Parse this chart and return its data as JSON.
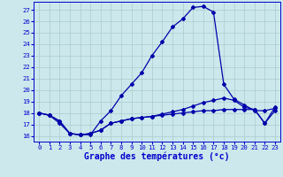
{
  "title": "Graphe des températures (°c)",
  "x_hours": [
    0,
    1,
    2,
    3,
    4,
    5,
    6,
    7,
    8,
    9,
    10,
    11,
    12,
    13,
    14,
    15,
    16,
    17,
    18,
    19,
    20,
    21,
    22,
    23
  ],
  "main_temp": [
    18.0,
    17.8,
    17.1,
    16.2,
    16.1,
    16.1,
    17.3,
    18.2,
    19.5,
    20.5,
    21.5,
    23.0,
    24.2,
    25.5,
    26.2,
    27.2,
    27.3,
    26.8,
    20.5,
    19.2,
    18.7,
    18.2,
    18.2,
    18.4
  ],
  "dew_line1": [
    18.0,
    17.8,
    17.3,
    16.2,
    16.1,
    16.2,
    16.5,
    17.1,
    17.3,
    17.5,
    17.6,
    17.7,
    17.8,
    17.9,
    18.0,
    18.1,
    18.2,
    18.2,
    18.3,
    18.3,
    18.3,
    18.3,
    17.1,
    18.2
  ],
  "dew_line2": [
    18.0,
    17.8,
    17.3,
    16.2,
    16.1,
    16.2,
    16.5,
    17.1,
    17.3,
    17.5,
    17.6,
    17.7,
    17.9,
    18.1,
    18.3,
    18.6,
    18.9,
    19.1,
    19.3,
    19.1,
    18.5,
    18.3,
    17.1,
    18.5
  ],
  "yticks": [
    16,
    17,
    18,
    19,
    20,
    21,
    22,
    23,
    24,
    25,
    26,
    27
  ],
  "bg_color": "#cce8ec",
  "line_color": "#0000aa",
  "grid_color": "#aacccc",
  "label_color": "#0000cc",
  "axis_label_fontsize": 6.5,
  "tick_fontsize": 5.2,
  "xlabel_fontsize": 7.0
}
